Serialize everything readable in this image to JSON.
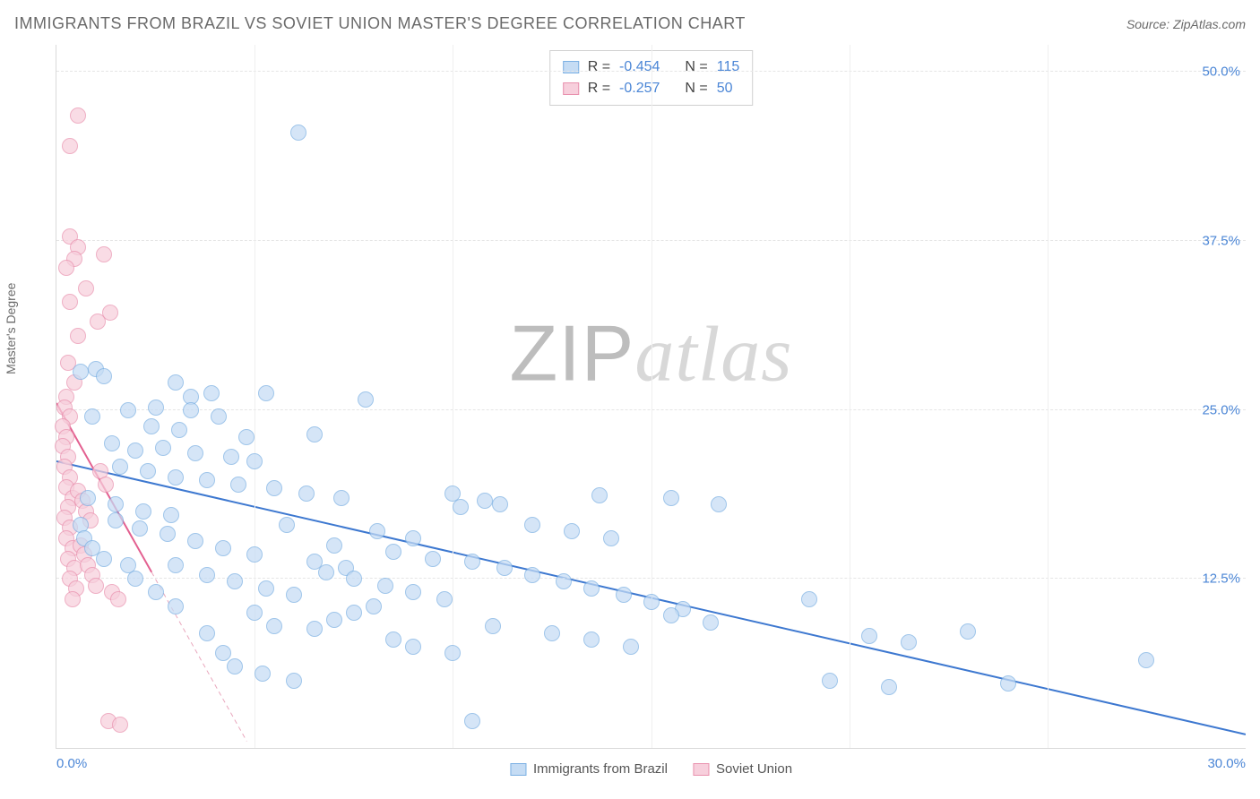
{
  "header": {
    "title": "IMMIGRANTS FROM BRAZIL VS SOVIET UNION MASTER'S DEGREE CORRELATION CHART",
    "source_prefix": "Source: ",
    "source_name": "ZipAtlas.com"
  },
  "watermark": {
    "zip": "ZIP",
    "atlas": "atlas"
  },
  "chart": {
    "type": "scatter",
    "ylabel": "Master's Degree",
    "xlim": [
      0,
      30
    ],
    "ylim": [
      0,
      52
    ],
    "yticks": [
      12.5,
      25.0,
      37.5,
      50.0
    ],
    "ytick_labels": [
      "12.5%",
      "25.0%",
      "37.5%",
      "50.0%"
    ],
    "xticks_minor": [
      5,
      10,
      15,
      20,
      25
    ],
    "xtick_left": "0.0%",
    "xtick_right": "30.0%",
    "background_color": "#ffffff",
    "grid_color": "#e5e5e5",
    "axis_color": "#d9d9d9",
    "tick_label_color": "#4b86d6",
    "label_fontsize": 14,
    "tick_fontsize": 15,
    "point_radius": 9,
    "point_stroke_width": 1
  },
  "series": [
    {
      "key": "brazil",
      "label": "Immigrants from Brazil",
      "R": "-0.454",
      "N": "115",
      "fill": "#c5dcf4",
      "stroke": "#7bb0e3",
      "fill_opacity": 0.72,
      "trend": {
        "x1": 0,
        "y1": 21.2,
        "x2": 30,
        "y2": 1.0,
        "color": "#3d78d0",
        "width": 2,
        "dash": ""
      },
      "trend_extra": {
        "x1": 0,
        "y1": 21.2,
        "x2": 1.1,
        "y2": 20.2
      },
      "points": [
        [
          6.1,
          45.5
        ],
        [
          0.6,
          27.8
        ],
        [
          1.0,
          28.0
        ],
        [
          1.2,
          27.5
        ],
        [
          3.0,
          27.0
        ],
        [
          3.4,
          26.0
        ],
        [
          3.9,
          26.2
        ],
        [
          5.3,
          26.2
        ],
        [
          7.8,
          25.8
        ],
        [
          1.8,
          25.0
        ],
        [
          2.5,
          25.2
        ],
        [
          3.4,
          25.0
        ],
        [
          4.1,
          24.5
        ],
        [
          0.9,
          24.5
        ],
        [
          2.4,
          23.8
        ],
        [
          3.1,
          23.5
        ],
        [
          4.8,
          23.0
        ],
        [
          6.5,
          23.2
        ],
        [
          1.4,
          22.5
        ],
        [
          2.0,
          22.0
        ],
        [
          2.7,
          22.2
        ],
        [
          3.5,
          21.8
        ],
        [
          4.4,
          21.5
        ],
        [
          5.0,
          21.2
        ],
        [
          1.6,
          20.8
        ],
        [
          2.3,
          20.5
        ],
        [
          3.0,
          20.0
        ],
        [
          3.8,
          19.8
        ],
        [
          4.6,
          19.5
        ],
        [
          5.5,
          19.2
        ],
        [
          6.3,
          18.8
        ],
        [
          7.2,
          18.5
        ],
        [
          10.0,
          18.8
        ],
        [
          10.8,
          18.3
        ],
        [
          10.2,
          17.8
        ],
        [
          11.2,
          18.0
        ],
        [
          13.7,
          18.7
        ],
        [
          15.5,
          18.5
        ],
        [
          16.7,
          18.0
        ],
        [
          0.8,
          18.5
        ],
        [
          1.5,
          18.0
        ],
        [
          2.2,
          17.5
        ],
        [
          2.9,
          17.2
        ],
        [
          0.6,
          16.5
        ],
        [
          0.7,
          15.5
        ],
        [
          0.9,
          14.8
        ],
        [
          1.2,
          14.0
        ],
        [
          1.5,
          16.8
        ],
        [
          2.1,
          16.2
        ],
        [
          2.8,
          15.8
        ],
        [
          3.5,
          15.3
        ],
        [
          4.2,
          14.8
        ],
        [
          5.0,
          14.3
        ],
        [
          5.8,
          16.5
        ],
        [
          6.5,
          13.8
        ],
        [
          7.3,
          13.3
        ],
        [
          8.1,
          16.0
        ],
        [
          9.0,
          15.5
        ],
        [
          3.0,
          13.5
        ],
        [
          3.8,
          12.8
        ],
        [
          4.5,
          12.3
        ],
        [
          5.3,
          11.8
        ],
        [
          6.0,
          11.3
        ],
        [
          6.8,
          13.0
        ],
        [
          7.5,
          12.5
        ],
        [
          8.3,
          12.0
        ],
        [
          9.0,
          11.5
        ],
        [
          9.8,
          11.0
        ],
        [
          10.5,
          13.8
        ],
        [
          11.3,
          13.3
        ],
        [
          12.0,
          12.8
        ],
        [
          12.8,
          12.3
        ],
        [
          13.5,
          11.8
        ],
        [
          14.3,
          11.3
        ],
        [
          15.0,
          10.8
        ],
        [
          15.8,
          10.3
        ],
        [
          12.0,
          16.5
        ],
        [
          13.0,
          16.0
        ],
        [
          14.0,
          15.5
        ],
        [
          7.0,
          15.0
        ],
        [
          8.5,
          14.5
        ],
        [
          9.5,
          14.0
        ],
        [
          4.5,
          6.0
        ],
        [
          5.2,
          5.5
        ],
        [
          6.0,
          5.0
        ],
        [
          6.5,
          8.8
        ],
        [
          7.0,
          9.5
        ],
        [
          7.5,
          10.0
        ],
        [
          8.0,
          10.5
        ],
        [
          5.0,
          10.0
        ],
        [
          5.5,
          9.0
        ],
        [
          8.5,
          8.0
        ],
        [
          9.0,
          7.5
        ],
        [
          10.0,
          7.0
        ],
        [
          10.5,
          2.0
        ],
        [
          11.0,
          9.0
        ],
        [
          12.5,
          8.5
        ],
        [
          13.5,
          8.0
        ],
        [
          14.5,
          7.5
        ],
        [
          15.5,
          9.8
        ],
        [
          16.5,
          9.3
        ],
        [
          19.0,
          11.0
        ],
        [
          19.5,
          5.0
        ],
        [
          20.5,
          8.3
        ],
        [
          21.5,
          7.8
        ],
        [
          21.0,
          4.5
        ],
        [
          23.0,
          8.6
        ],
        [
          24.0,
          4.8
        ],
        [
          27.5,
          6.5
        ],
        [
          3.8,
          8.5
        ],
        [
          4.2,
          7.0
        ],
        [
          3.0,
          10.5
        ],
        [
          2.5,
          11.5
        ],
        [
          2.0,
          12.5
        ],
        [
          1.8,
          13.5
        ]
      ]
    },
    {
      "key": "soviet",
      "label": "Soviet Union",
      "R": "-0.257",
      "N": "50",
      "fill": "#f7cfdc",
      "stroke": "#e991ae",
      "fill_opacity": 0.72,
      "trend": {
        "x1": 0,
        "y1": 25.5,
        "x2": 2.4,
        "y2": 13.0,
        "color": "#e36090",
        "width": 2,
        "dash": ""
      },
      "trend_dashed": {
        "x1": 2.4,
        "y1": 13.0,
        "x2": 4.8,
        "y2": 0.5,
        "color": "#e9a7bd",
        "width": 1,
        "dash": "5,4"
      },
      "points": [
        [
          0.55,
          46.8
        ],
        [
          0.35,
          44.5
        ],
        [
          0.35,
          37.8
        ],
        [
          0.55,
          37.0
        ],
        [
          0.45,
          36.2
        ],
        [
          0.25,
          35.5
        ],
        [
          1.2,
          36.5
        ],
        [
          0.75,
          34.0
        ],
        [
          0.35,
          33.0
        ],
        [
          1.35,
          32.2
        ],
        [
          1.05,
          31.5
        ],
        [
          0.55,
          30.5
        ],
        [
          0.3,
          28.5
        ],
        [
          0.45,
          27.0
        ],
        [
          0.25,
          26.0
        ],
        [
          0.2,
          25.2
        ],
        [
          0.35,
          24.5
        ],
        [
          0.15,
          23.8
        ],
        [
          0.25,
          23.0
        ],
        [
          0.15,
          22.3
        ],
        [
          0.3,
          21.5
        ],
        [
          0.2,
          20.8
        ],
        [
          0.35,
          20.0
        ],
        [
          0.25,
          19.3
        ],
        [
          0.4,
          18.5
        ],
        [
          0.3,
          17.8
        ],
        [
          0.2,
          17.0
        ],
        [
          0.35,
          16.3
        ],
        [
          0.25,
          15.5
        ],
        [
          0.4,
          14.8
        ],
        [
          0.3,
          14.0
        ],
        [
          0.45,
          13.3
        ],
        [
          0.35,
          12.5
        ],
        [
          0.5,
          11.8
        ],
        [
          0.4,
          11.0
        ],
        [
          0.55,
          19.0
        ],
        [
          0.65,
          18.3
        ],
        [
          0.75,
          17.5
        ],
        [
          0.85,
          16.8
        ],
        [
          0.6,
          15.0
        ],
        [
          0.7,
          14.3
        ],
        [
          0.8,
          13.5
        ],
        [
          0.9,
          12.8
        ],
        [
          1.0,
          12.0
        ],
        [
          1.1,
          20.5
        ],
        [
          1.25,
          19.5
        ],
        [
          1.4,
          11.5
        ],
        [
          1.55,
          11.0
        ],
        [
          1.3,
          2.0
        ],
        [
          1.6,
          1.7
        ]
      ]
    }
  ],
  "correlation_box": {
    "R_label": "R =",
    "N_label": "N ="
  },
  "bottom_legend": {
    "items": [
      "brazil",
      "soviet"
    ]
  }
}
